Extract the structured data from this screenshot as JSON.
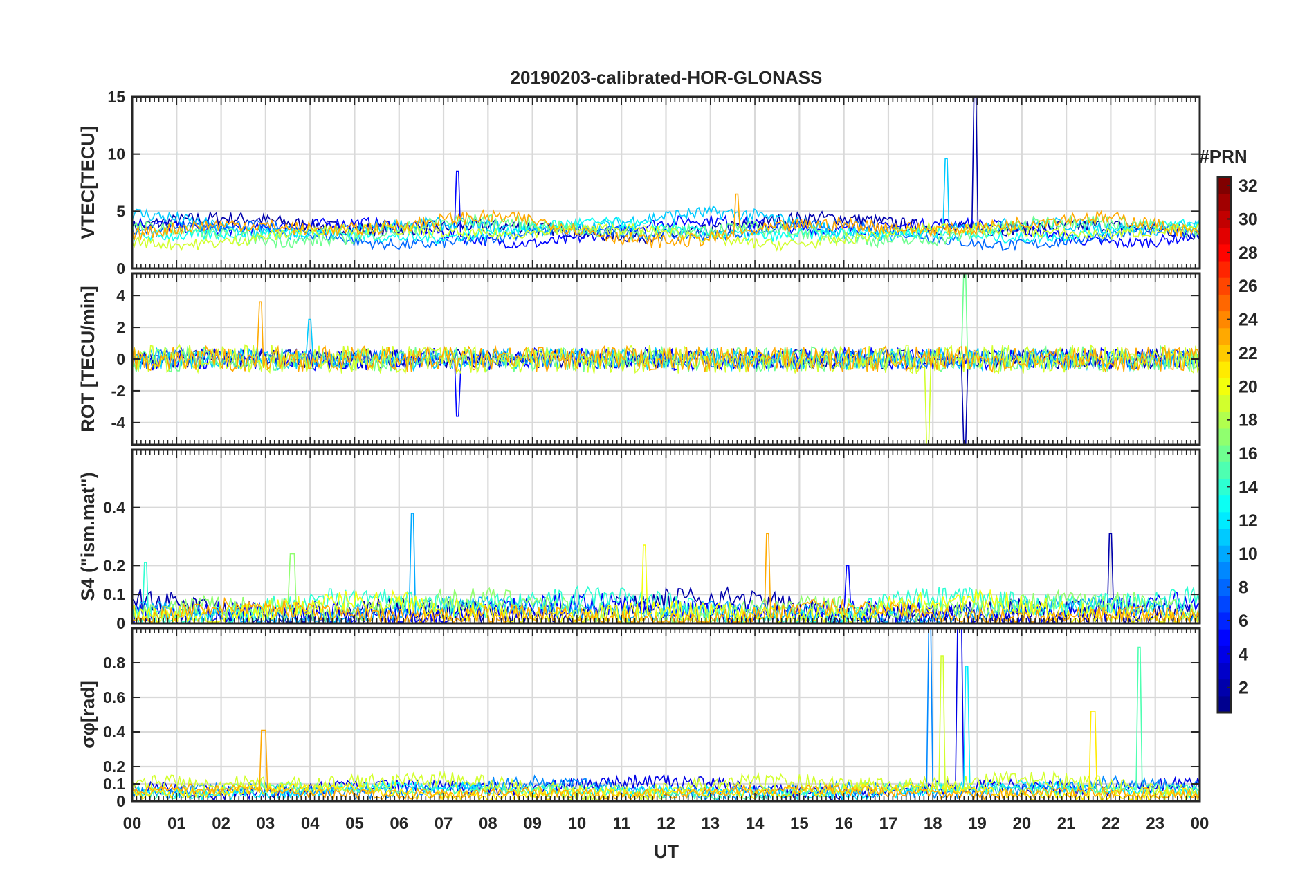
{
  "chart_data": {
    "type": "line",
    "title": "20190203-calibrated-HOR-GLONASS",
    "xlabel": "UT",
    "x_ticks": [
      "00",
      "01",
      "02",
      "03",
      "04",
      "05",
      "06",
      "07",
      "08",
      "09",
      "10",
      "11",
      "12",
      "13",
      "14",
      "15",
      "16",
      "17",
      "18",
      "19",
      "20",
      "21",
      "22",
      "23",
      "00"
    ],
    "xlim": [
      0,
      24
    ],
    "colorbar": {
      "label": "#PRN",
      "range": [
        1,
        32
      ],
      "tick_labels": [
        "2",
        "4",
        "6",
        "8",
        "10",
        "12",
        "14",
        "16",
        "18",
        "20",
        "22",
        "24",
        "26",
        "28",
        "30",
        "32"
      ],
      "colormap": [
        "#00008f",
        "#0000ff",
        "#0080ff",
        "#00ffff",
        "#80ff80",
        "#ffff00",
        "#ff8000",
        "#ff0000",
        "#800000"
      ]
    },
    "panels": [
      {
        "ylabel": "VTEC[TECU]",
        "ylim": [
          0,
          15
        ],
        "y_ticks": [
          0,
          5,
          10,
          15
        ],
        "series": [
          {
            "name": "PRN 2",
            "prn": 2,
            "base": 3.6,
            "amp": 0.9,
            "noise": 0.6,
            "spike": {
              "x": 18.95,
              "y": 15
            }
          },
          {
            "name": "PRN 5",
            "prn": 5,
            "base": 3.4,
            "amp": 1.2,
            "noise": 0.5,
            "spike": {
              "x": 7.3,
              "y": 8.5
            }
          },
          {
            "name": "PRN 8",
            "prn": 8,
            "base": 3.0,
            "amp": 1.0,
            "noise": 0.5,
            "spike": null
          },
          {
            "name": "PRN 11",
            "prn": 11,
            "base": 3.8,
            "amp": 1.1,
            "noise": 0.6,
            "spike": {
              "x": 18.3,
              "y": 9.6
            }
          },
          {
            "name": "PRN 13",
            "prn": 13,
            "base": 3.2,
            "amp": 0.8,
            "noise": 0.5,
            "spike": null
          },
          {
            "name": "PRN 16",
            "prn": 16,
            "base": 3.3,
            "amp": 1.0,
            "noise": 0.6,
            "spike": null
          },
          {
            "name": "PRN 19",
            "prn": 19,
            "base": 3.0,
            "amp": 0.9,
            "noise": 0.5,
            "spike": null
          },
          {
            "name": "PRN 23",
            "prn": 23,
            "base": 3.5,
            "amp": 1.2,
            "noise": 0.6,
            "spike": {
              "x": 13.6,
              "y": 6.5
            }
          }
        ]
      },
      {
        "ylabel": "ROT [TECU/min]",
        "ylim": [
          -5.4,
          5.4
        ],
        "y_ticks": [
          -4,
          -2,
          0,
          2,
          4
        ],
        "series": [
          {
            "name": "PRN 2",
            "prn": 2,
            "base": 0,
            "amp": 0,
            "noise": 0.6,
            "spike": {
              "x": 18.7,
              "y": -5.4
            }
          },
          {
            "name": "PRN 5",
            "prn": 5,
            "base": 0,
            "amp": 0,
            "noise": 0.7,
            "spike": {
              "x": 7.3,
              "y": -3.6
            }
          },
          {
            "name": "PRN 8",
            "prn": 8,
            "base": 0,
            "amp": 0,
            "noise": 0.6,
            "spike": null
          },
          {
            "name": "PRN 11",
            "prn": 11,
            "base": 0,
            "amp": 0,
            "noise": 0.7,
            "spike": {
              "x": 4.0,
              "y": 2.5
            }
          },
          {
            "name": "PRN 16",
            "prn": 16,
            "base": 0,
            "amp": 0,
            "noise": 0.8,
            "spike": {
              "x": 18.7,
              "y": 5.4
            }
          },
          {
            "name": "PRN 19",
            "prn": 19,
            "base": 0,
            "amp": 0,
            "noise": 0.9,
            "spike": {
              "x": 17.9,
              "y": -5.4
            }
          },
          {
            "name": "PRN 23",
            "prn": 23,
            "base": 0,
            "amp": 0,
            "noise": 0.8,
            "spike": {
              "x": 2.9,
              "y": 3.6
            }
          }
        ]
      },
      {
        "ylabel": "S4 (\"ism.mat\")",
        "ylim": [
          0,
          0.6
        ],
        "y_ticks": [
          0,
          0.1,
          0.2,
          0.4
        ],
        "series": [
          {
            "name": "PRN 2",
            "prn": 2,
            "base": 0.05,
            "amp": 0.04,
            "noise": 0.04,
            "spike": {
              "x": 22.0,
              "y": 0.31
            }
          },
          {
            "name": "PRN 5",
            "prn": 5,
            "base": 0.04,
            "amp": 0.03,
            "noise": 0.04,
            "spike": {
              "x": 16.1,
              "y": 0.2
            }
          },
          {
            "name": "PRN 10",
            "prn": 10,
            "base": 0.04,
            "amp": 0.03,
            "noise": 0.03,
            "spike": {
              "x": 6.3,
              "y": 0.38
            }
          },
          {
            "name": "PRN 14",
            "prn": 14,
            "base": 0.06,
            "amp": 0.05,
            "noise": 0.04,
            "spike": {
              "x": 0.3,
              "y": 0.21
            }
          },
          {
            "name": "PRN 17",
            "prn": 17,
            "base": 0.05,
            "amp": 0.04,
            "noise": 0.04,
            "spike": {
              "x": 3.6,
              "y": 0.24
            }
          },
          {
            "name": "PRN 20",
            "prn": 20,
            "base": 0.04,
            "amp": 0.04,
            "noise": 0.04,
            "spike": {
              "x": 11.5,
              "y": 0.27
            }
          },
          {
            "name": "PRN 23",
            "prn": 23,
            "base": 0.03,
            "amp": 0.03,
            "noise": 0.03,
            "spike": {
              "x": 14.3,
              "y": 0.31
            }
          }
        ]
      },
      {
        "ylabel": "σφ[rad]",
        "ylim": [
          0,
          1
        ],
        "y_ticks": [
          0,
          0.1,
          0.2,
          0.4,
          0.6,
          0.8
        ],
        "series": [
          {
            "name": "PRN 4",
            "prn": 4,
            "base": 0.08,
            "amp": 0.04,
            "noise": 0.04,
            "spike": {
              "x": 18.6,
              "y": 1.0
            }
          },
          {
            "name": "PRN 9",
            "prn": 9,
            "base": 0.07,
            "amp": 0.04,
            "noise": 0.04,
            "spike": {
              "x": 17.95,
              "y": 1.0
            }
          },
          {
            "name": "PRN 12",
            "prn": 12,
            "base": 0.06,
            "amp": 0.03,
            "noise": 0.03,
            "spike": {
              "x": 18.75,
              "y": 0.78
            }
          },
          {
            "name": "PRN 15",
            "prn": 15,
            "base": 0.06,
            "amp": 0.03,
            "noise": 0.03,
            "spike": {
              "x": 22.65,
              "y": 0.89
            }
          },
          {
            "name": "PRN 19",
            "prn": 19,
            "base": 0.09,
            "amp": 0.05,
            "noise": 0.05,
            "spike": {
              "x": 18.2,
              "y": 0.84
            }
          },
          {
            "name": "PRN 21",
            "prn": 21,
            "base": 0.05,
            "amp": 0.03,
            "noise": 0.03,
            "spike": {
              "x": 21.6,
              "y": 0.52
            }
          },
          {
            "name": "PRN 23",
            "prn": 23,
            "base": 0.05,
            "amp": 0.02,
            "noise": 0.03,
            "spike": {
              "x": 2.95,
              "y": 0.41
            }
          }
        ]
      }
    ]
  }
}
